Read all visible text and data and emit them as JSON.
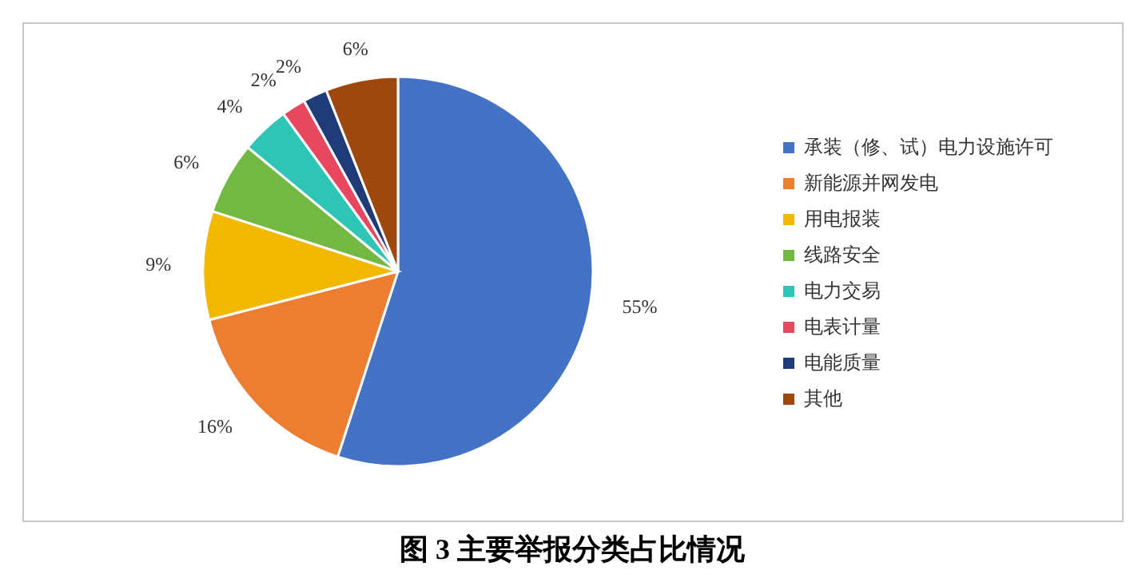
{
  "chart_data": {
    "type": "pie",
    "title": "图 3 主要举报分类占比情况",
    "categories": [
      "承装（修、试）电力设施许可",
      "新能源并网发电",
      "用电报装",
      "线路安全",
      "电力交易",
      "电表计量",
      "电能质量",
      "其他"
    ],
    "values": [
      55,
      16,
      9,
      6,
      4,
      2,
      2,
      6
    ],
    "colors": [
      "#4472c4",
      "#ed7d31",
      "#f2b800",
      "#72b843",
      "#2ec4b6",
      "#e8485f",
      "#1f3c78",
      "#9e480e"
    ],
    "value_labels": [
      "55%",
      "16%",
      "9%",
      "6%",
      "4%",
      "2%",
      "2%",
      "6%"
    ],
    "legend": "right"
  }
}
